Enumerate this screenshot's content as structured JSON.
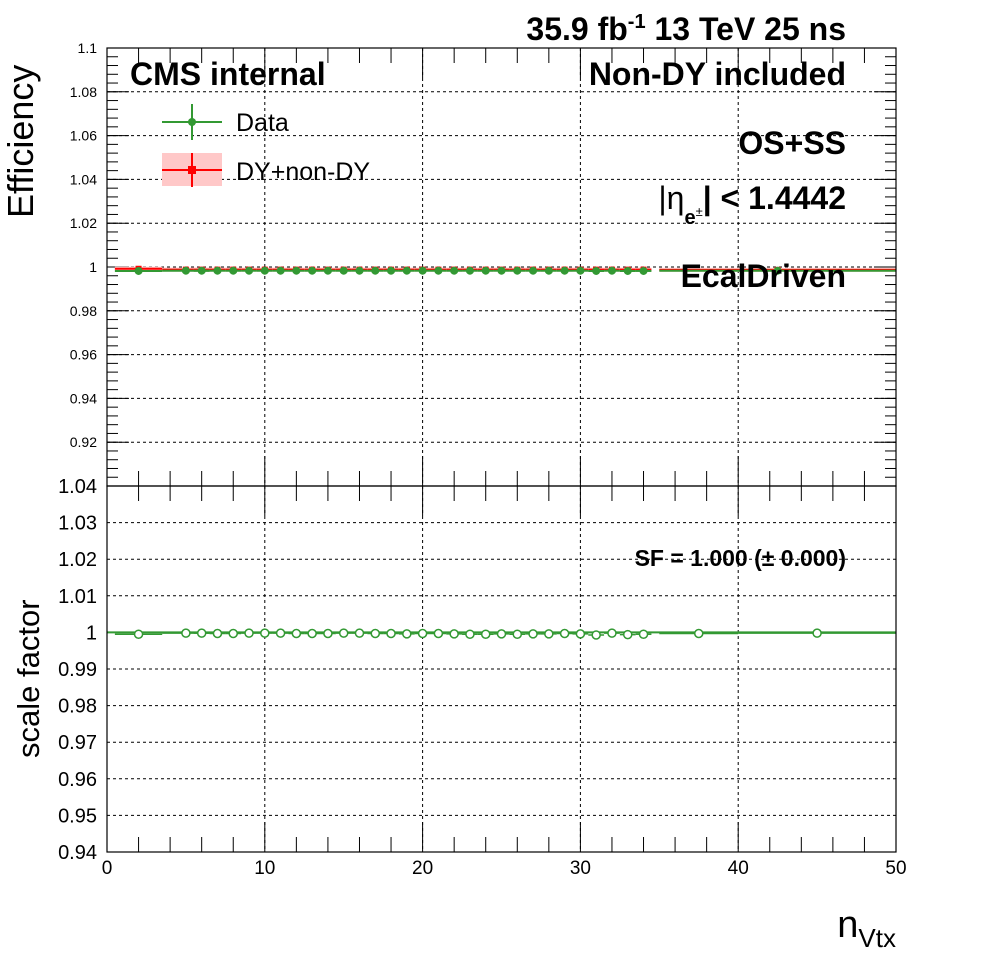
{
  "header": {
    "lumi": "35.9 fb",
    "lumi_exp": "-1",
    "energy": " 13 TeV 25 ns"
  },
  "labels": {
    "cms": "CMS internal",
    "selection": "Non-DY included",
    "charge": "OS+SS",
    "eta_prefix": "|η",
    "eta_sub": "e",
    "eta_sup": "±",
    "eta_suffix": "| < 1.4442",
    "type": "EcalDriven",
    "sf": "SF = 1.000 (± 0.000)"
  },
  "colors": {
    "data": "#339933",
    "mc": "#ff0000",
    "mc_band": "#ffc8c8",
    "axis": "#000000"
  },
  "chart_data": [
    {
      "type": "scatter",
      "panel": "efficiency",
      "ylabel": "Efficiency",
      "xlim": [
        0,
        50
      ],
      "ylim": [
        0.9,
        1.1
      ],
      "yticks": [
        0.92,
        0.94,
        0.96,
        0.98,
        1,
        1.02,
        1.04,
        1.06,
        1.08,
        1.1
      ],
      "ytick_labels": [
        "0.92",
        "0.94",
        "0.96",
        "0.98",
        "1",
        "1.02",
        "1.04",
        "1.06",
        "1.08",
        "1.1"
      ],
      "legend": [
        {
          "name": "Data",
          "marker": "circle",
          "color": "#339933"
        },
        {
          "name": "DY+non-DY",
          "marker": "square",
          "color": "#ff0000"
        }
      ],
      "legend_position": "top-left",
      "series": [
        {
          "name": "Data",
          "x": [
            2,
            5,
            6,
            7,
            8,
            9,
            10,
            11,
            12,
            13,
            14,
            15,
            16,
            17,
            18,
            19,
            20,
            21,
            22,
            23,
            24,
            25,
            26,
            27,
            28,
            29,
            30,
            31,
            32,
            33,
            34,
            42.5
          ],
          "xerr": [
            1.5,
            1.5,
            0.5,
            0.5,
            0.5,
            0.5,
            0.5,
            0.5,
            0.5,
            0.5,
            0.5,
            0.5,
            0.5,
            0.5,
            0.5,
            0.5,
            0.5,
            0.5,
            0.5,
            0.5,
            0.5,
            0.5,
            0.5,
            0.5,
            0.5,
            0.5,
            0.5,
            0.5,
            0.5,
            0.5,
            0.5,
            7.5
          ],
          "y": [
            0.9982,
            0.9983,
            0.9983,
            0.9983,
            0.9983,
            0.9983,
            0.9983,
            0.9983,
            0.9983,
            0.9983,
            0.9983,
            0.9983,
            0.9983,
            0.9983,
            0.9983,
            0.9983,
            0.9983,
            0.9983,
            0.9983,
            0.9983,
            0.9983,
            0.9983,
            0.9983,
            0.9983,
            0.9983,
            0.9983,
            0.9983,
            0.9982,
            0.9983,
            0.9982,
            0.9982,
            0.9983
          ]
        },
        {
          "name": "DY+non-DY",
          "x": [
            2,
            5,
            6,
            7,
            8,
            9,
            10,
            11,
            12,
            13,
            14,
            15,
            16,
            17,
            18,
            19,
            20,
            21,
            22,
            23,
            24,
            25,
            26,
            27,
            28,
            29,
            30,
            31,
            32,
            33,
            34,
            42.5
          ],
          "xerr": [
            1.5,
            1.5,
            0.5,
            0.5,
            0.5,
            0.5,
            0.5,
            0.5,
            0.5,
            0.5,
            0.5,
            0.5,
            0.5,
            0.5,
            0.5,
            0.5,
            0.5,
            0.5,
            0.5,
            0.5,
            0.5,
            0.5,
            0.5,
            0.5,
            0.5,
            0.5,
            0.5,
            0.5,
            0.5,
            0.5,
            0.5,
            7.5
          ],
          "y": [
            0.9992,
            0.9988,
            0.9988,
            0.9988,
            0.9988,
            0.9988,
            0.9988,
            0.9988,
            0.9988,
            0.9988,
            0.9988,
            0.9988,
            0.9988,
            0.9988,
            0.9988,
            0.9988,
            0.9988,
            0.9988,
            0.9988,
            0.9988,
            0.9988,
            0.9988,
            0.9988,
            0.9988,
            0.9988,
            0.9988,
            0.9988,
            0.9988,
            0.9988,
            0.9988,
            0.9988,
            0.9987
          ]
        }
      ]
    },
    {
      "type": "scatter",
      "panel": "scale_factor",
      "xlabel": "n",
      "xlabel_sub": "Vtx",
      "ylabel": "scale factor",
      "xlim": [
        0,
        50
      ],
      "ylim": [
        0.94,
        1.04
      ],
      "xticks": [
        0,
        10,
        20,
        30,
        40,
        50
      ],
      "xtick_labels": [
        "0",
        "10",
        "20",
        "30",
        "40",
        "50"
      ],
      "yticks": [
        0.94,
        0.95,
        0.96,
        0.97,
        0.98,
        0.99,
        1,
        1.01,
        1.02,
        1.03,
        1.04
      ],
      "ytick_labels": [
        "0.94",
        "0.95",
        "0.96",
        "0.97",
        "0.98",
        "0.99",
        "1",
        "1.01",
        "1.02",
        "1.03",
        "1.04"
      ],
      "fit": {
        "name": "SF",
        "value": 1.0
      },
      "series": [
        {
          "name": "scale factor",
          "x": [
            2,
            5,
            6,
            7,
            8,
            9,
            10,
            11,
            12,
            13,
            14,
            15,
            16,
            17,
            18,
            19,
            20,
            21,
            22,
            23,
            24,
            25,
            26,
            27,
            28,
            29,
            30,
            31,
            32,
            33,
            34,
            37.5,
            45
          ],
          "xerr": [
            1.5,
            1.5,
            0.5,
            0.5,
            0.5,
            0.5,
            0.5,
            0.5,
            0.5,
            0.5,
            0.5,
            0.5,
            0.5,
            0.5,
            0.5,
            0.5,
            0.5,
            0.5,
            0.5,
            0.5,
            0.5,
            0.5,
            0.5,
            0.5,
            0.5,
            0.5,
            0.5,
            0.5,
            0.5,
            0.5,
            0.5,
            2.5,
            5
          ],
          "y": [
            0.9995,
            0.9998,
            0.9998,
            0.9997,
            0.9997,
            0.9998,
            0.9998,
            0.9998,
            0.9997,
            0.9997,
            0.9997,
            0.9998,
            0.9998,
            0.9997,
            0.9997,
            0.9996,
            0.9997,
            0.9997,
            0.9996,
            0.9995,
            0.9995,
            0.9996,
            0.9995,
            0.9996,
            0.9996,
            0.9997,
            0.9996,
            0.9993,
            0.9998,
            0.9994,
            0.9995,
            0.9997,
            0.9998
          ]
        }
      ]
    }
  ]
}
